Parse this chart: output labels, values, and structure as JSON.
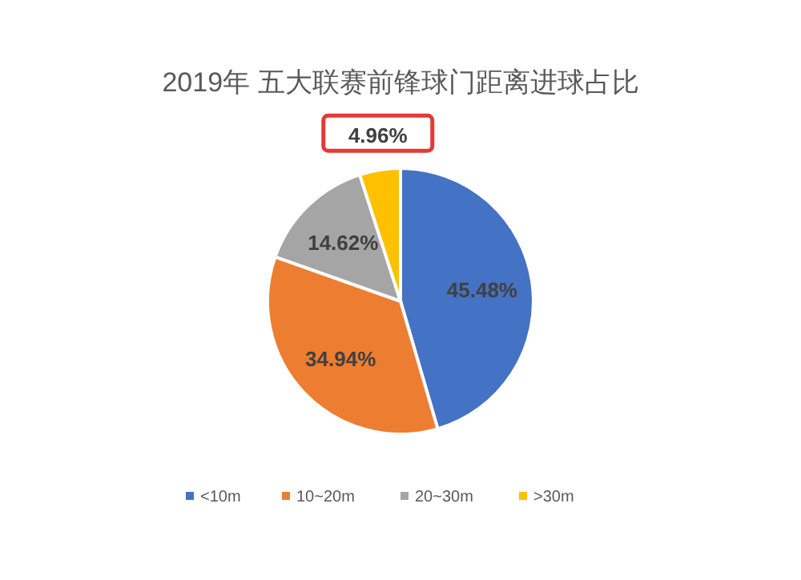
{
  "chart_data": {
    "type": "pie",
    "title": "2019年 五大联赛前锋球门距离进球占比",
    "categories": [
      "<10m",
      "10~20m",
      "20~30m",
      ">30m"
    ],
    "values": [
      45.48,
      34.94,
      14.62,
      4.96
    ],
    "value_labels": [
      "45.48%",
      "34.94%",
      "14.62%",
      "4.96%"
    ],
    "colors": [
      "#4472c4",
      "#ed7d31",
      "#a5a5a5",
      "#ffc000"
    ],
    "legend": "bottom"
  }
}
